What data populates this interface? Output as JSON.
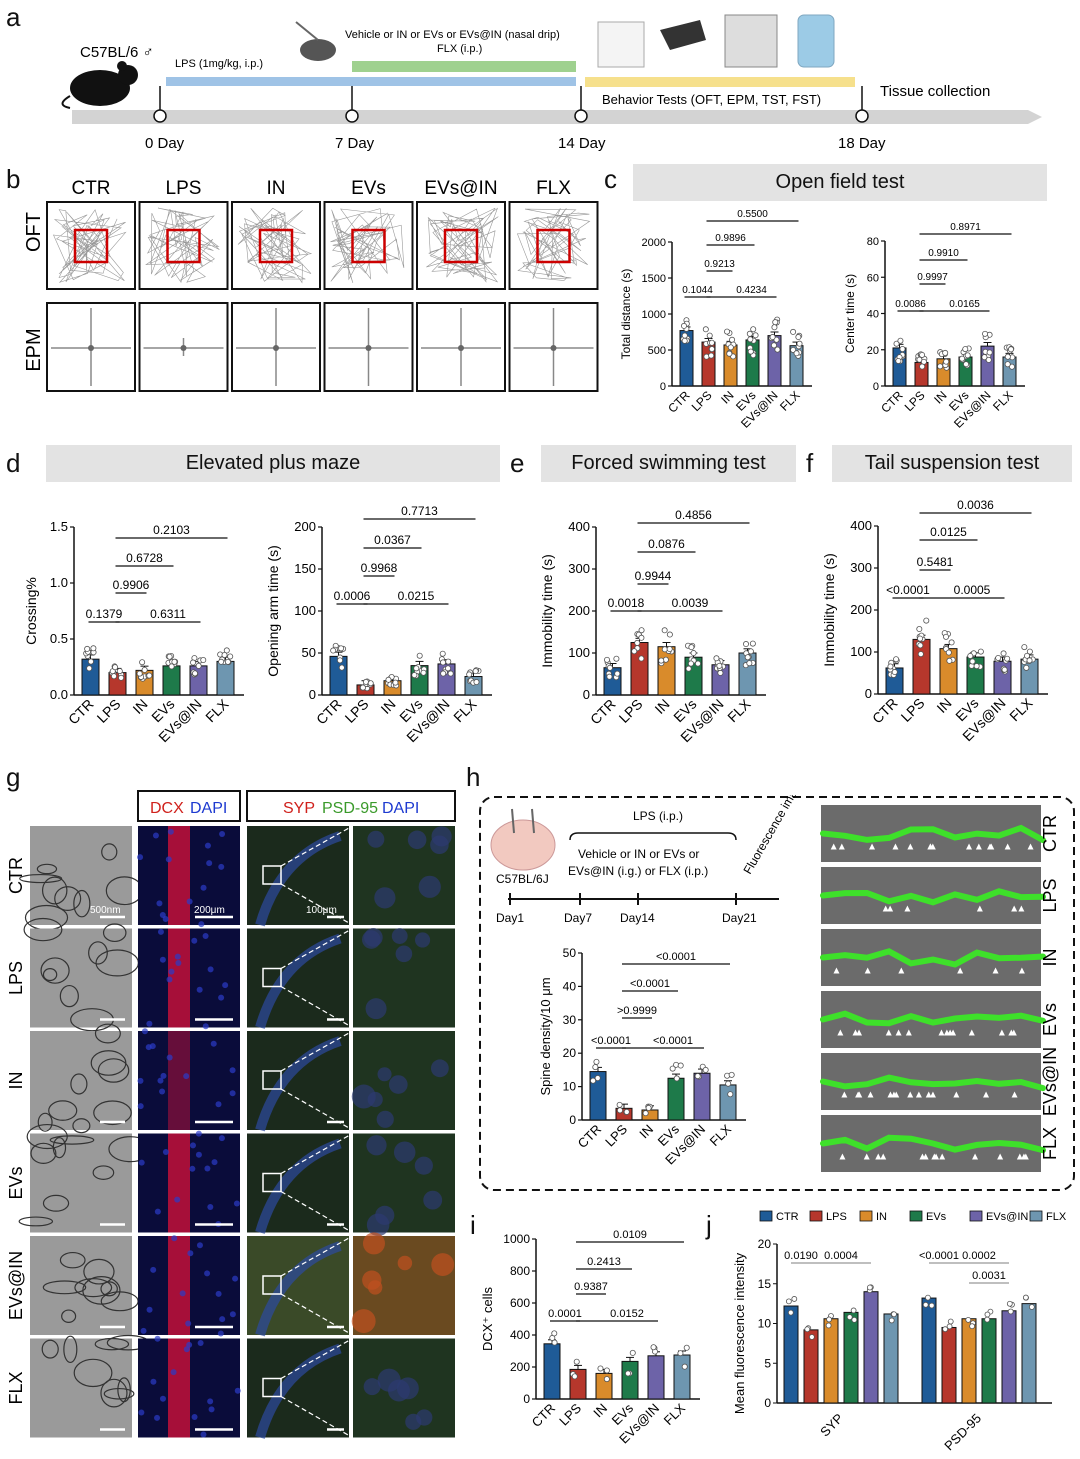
{
  "panels": [
    "a",
    "b",
    "c",
    "d",
    "e",
    "f",
    "g",
    "h",
    "i",
    "j"
  ],
  "colors": {
    "CTR": "#1f5b97",
    "LPS": "#b6372c",
    "IN": "#d98b2b",
    "EVs": "#1e7a4a",
    "EVs@IN": "#6d63a8",
    "FLX": "#6e96b0"
  },
  "a": {
    "mouse": "C57BL/6 ♂",
    "lps": "LPS (1mg/kg, i.p.)",
    "treat1": "Vehicle or IN or EVs or EVs@IN (nasal drip)",
    "treat2": "FLX (i.p.)",
    "behavior": "Behavior Tests (OFT, EPM, TST, FST)",
    "tissue": "Tissue collection",
    "days": [
      "0 Day",
      "7 Day",
      "14 Day",
      "18 Day"
    ]
  },
  "b": {
    "groups": [
      "CTR",
      "LPS",
      "IN",
      "EVs",
      "EVs@IN",
      "FLX"
    ],
    "rows": [
      "OFT",
      "EPM"
    ]
  },
  "c": {
    "title": "Open field test"
  },
  "d": {
    "title": "Elevated plus maze"
  },
  "e": {
    "title": "Forced swimming test"
  },
  "f": {
    "title": "Tail suspension test"
  },
  "g": {
    "stain1a": "DCX",
    "stain1b": "DAPI",
    "stain2a": "SYP",
    "stain2b": "PSD-95",
    "stain2c": "DAPI",
    "scale_em": "500nm",
    "scale_dcx": "200μm",
    "scale_syp": "100μm",
    "rows": [
      "CTR",
      "LPS",
      "IN",
      "EVs",
      "EVs@IN",
      "FLX"
    ]
  },
  "h": {
    "mouse": "C57BL/6J",
    "lps": "LPS (i.p.)",
    "treat1": "Vehicle or IN or EVs or",
    "treat2": "EVs@IN (i.g.) or FLX (i.p.)",
    "imaging": "Fluorescence imaging",
    "days": [
      "Day1",
      "Day7",
      "Day14",
      "Day21"
    ],
    "rows": [
      "CTR",
      "LPS",
      "IN",
      "EVs",
      "EVs@IN",
      "FLX"
    ]
  },
  "chart_data": [
    {
      "id": "c1",
      "type": "bar",
      "categories": [
        "CTR",
        "LPS",
        "IN",
        "EVs",
        "EVs@IN",
        "FLX"
      ],
      "values": [
        770,
        610,
        570,
        640,
        700,
        560
      ],
      "ylabel": "Total distance (s)",
      "ylim": [
        0,
        2000
      ],
      "ticks": [
        0,
        500,
        1000,
        1500,
        2000
      ],
      "comparisons": [
        {
          "label": "0.1044"
        },
        {
          "label": "0.4234"
        },
        {
          "label": "0.9213"
        },
        {
          "label": "0.9896"
        },
        {
          "label": "0.5500"
        }
      ]
    },
    {
      "id": "c2",
      "type": "bar",
      "categories": [
        "CTR",
        "LPS",
        "IN",
        "EVs",
        "EVs@IN",
        "FLX"
      ],
      "values": [
        21,
        13,
        15,
        16,
        22,
        16
      ],
      "ylabel": "Center time (s)",
      "ylim": [
        0,
        80
      ],
      "ticks": [
        0,
        20,
        40,
        60,
        80
      ],
      "comparisons": [
        {
          "label": "0.0086"
        },
        {
          "label": "0.0165"
        },
        {
          "label": "0.9997"
        },
        {
          "label": "0.9910"
        },
        {
          "label": "0.8971"
        }
      ]
    },
    {
      "id": "d1",
      "type": "bar",
      "categories": [
        "CTR",
        "LPS",
        "IN",
        "EVs",
        "EVs@IN",
        "FLX"
      ],
      "values": [
        0.32,
        0.2,
        0.22,
        0.26,
        0.26,
        0.3
      ],
      "ylabel": "Crossing%",
      "ylim": [
        0,
        1.5
      ],
      "ticks": [
        "0.0",
        "0.5",
        "1.0",
        "1.5"
      ],
      "comparisons": [
        {
          "label": "0.1379"
        },
        {
          "label": "0.6311"
        },
        {
          "label": "0.9906"
        },
        {
          "label": "0.6728"
        },
        {
          "label": "0.2103"
        }
      ]
    },
    {
      "id": "d2",
      "type": "bar",
      "categories": [
        "CTR",
        "LPS",
        "IN",
        "EVs",
        "EVs@IN",
        "FLX"
      ],
      "values": [
        46,
        12,
        17,
        35,
        37,
        22
      ],
      "ylabel": "Opening arm time (s)",
      "ylim": [
        0,
        200
      ],
      "ticks": [
        0,
        50,
        100,
        150,
        200
      ],
      "comparisons": [
        {
          "label": "0.0006"
        },
        {
          "label": "0.0215"
        },
        {
          "label": "0.9968"
        },
        {
          "label": "0.0367"
        },
        {
          "label": "0.7713"
        }
      ]
    },
    {
      "id": "e1",
      "type": "bar",
      "categories": [
        "CTR",
        "LPS",
        "IN",
        "EVs",
        "EVs@IN",
        "FLX"
      ],
      "values": [
        65,
        125,
        115,
        90,
        72,
        100
      ],
      "ylabel": "Immobility time (s)",
      "ylim": [
        0,
        400
      ],
      "ticks": [
        0,
        100,
        200,
        300,
        400
      ],
      "comparisons": [
        {
          "label": "0.0018"
        },
        {
          "label": "0.0039"
        },
        {
          "label": "0.9944"
        },
        {
          "label": "0.0876"
        },
        {
          "label": "0.4856"
        }
      ]
    },
    {
      "id": "f1",
      "type": "bar",
      "categories": [
        "CTR",
        "LPS",
        "IN",
        "EVs",
        "EVs@IN",
        "FLX"
      ],
      "values": [
        62,
        130,
        108,
        88,
        78,
        83
      ],
      "ylabel": "Immobility time (s)",
      "ylim": [
        0,
        400
      ],
      "ticks": [
        0,
        100,
        200,
        300,
        400
      ],
      "comparisons": [
        {
          "label": "<0.0001"
        },
        {
          "label": "0.0005"
        },
        {
          "label": "0.5481"
        },
        {
          "label": "0.0125"
        },
        {
          "label": "0.0036"
        }
      ]
    },
    {
      "id": "h1",
      "type": "bar",
      "categories": [
        "CTR",
        "LPS",
        "IN",
        "EVs",
        "EVs@IN",
        "FLX"
      ],
      "values": [
        14.5,
        3.5,
        3,
        12.5,
        14,
        10.5
      ],
      "ylabel": "Spine density/10 μm",
      "ylim": [
        0,
        50
      ],
      "ticks": [
        0,
        10,
        20,
        30,
        40,
        50
      ],
      "comparisons": [
        {
          "label": "<0.0001"
        },
        {
          "label": "<0.0001"
        },
        {
          "label": ">0.9999"
        },
        {
          "label": "<0.0001"
        },
        {
          "label": "<0.0001"
        }
      ]
    },
    {
      "id": "i1",
      "type": "bar",
      "categories": [
        "CTR",
        "LPS",
        "IN",
        "EVs",
        "EVs@IN",
        "FLX"
      ],
      "values": [
        345,
        185,
        160,
        235,
        270,
        275
      ],
      "ylabel": "DCX⁺ cells",
      "ylim": [
        0,
        1000
      ],
      "ticks": [
        0,
        200,
        400,
        600,
        800,
        1000
      ],
      "comparisons": [
        {
          "label": "0.0001"
        },
        {
          "label": "0.0152"
        },
        {
          "label": "0.9387"
        },
        {
          "label": "0.2413"
        },
        {
          "label": "0.0109"
        }
      ]
    },
    {
      "id": "j1",
      "type": "bar",
      "categories": [
        "SYP",
        "PSD-95"
      ],
      "ylabel": "Mean fluorescence intensity",
      "ylim": [
        0,
        20
      ],
      "ticks": [
        0,
        5,
        10,
        15,
        20
      ],
      "series": [
        {
          "name": "CTR",
          "values": [
            12.2,
            13.2
          ]
        },
        {
          "name": "LPS",
          "values": [
            9.2,
            9.5
          ]
        },
        {
          "name": "IN",
          "values": [
            10.6,
            10.6
          ]
        },
        {
          "name": "EVs",
          "values": [
            11.4,
            10.6
          ]
        },
        {
          "name": "EVs@IN",
          "values": [
            14,
            11.6
          ]
        },
        {
          "name": "FLX",
          "values": [
            11.2,
            12.5
          ]
        }
      ],
      "comparisons": [
        {
          "label": "0.0190"
        },
        {
          "label": "0.0004"
        },
        {
          "label": "<0.0001"
        },
        {
          "label": "0.0002"
        },
        {
          "label": "0.0031"
        }
      ]
    }
  ]
}
